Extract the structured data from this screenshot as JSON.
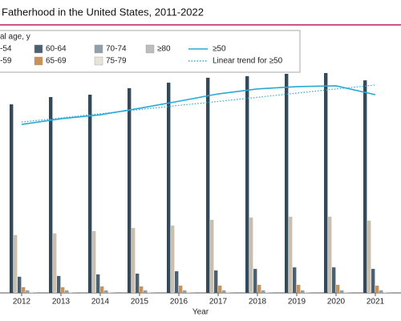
{
  "chart_data": {
    "type": "bar",
    "title": "Fatherhood in the United States, 2011-2022",
    "legend_title": "al age, y",
    "x_label": "Year",
    "categories": [
      "2012",
      "2013",
      "2014",
      "2015",
      "2016",
      "2017",
      "2018",
      "2019",
      "2020",
      "2021"
    ],
    "ylim": [
      0,
      100
    ],
    "series": [
      {
        "name": "-54",
        "color": "#34495a",
        "values": [
          72.3,
          75.1,
          76.0,
          78.5,
          80.6,
          82.5,
          83.1,
          84.0,
          84.3,
          81.5
        ]
      },
      {
        "name": "-59",
        "color": "#c9bfae",
        "values": [
          22.2,
          22.8,
          23.7,
          24.9,
          25.8,
          28.0,
          28.9,
          29.2,
          29.2,
          27.7
        ]
      },
      {
        "name": "60-64",
        "color": "#4b6172",
        "values": [
          6.2,
          6.5,
          7.1,
          7.4,
          8.3,
          8.6,
          9.2,
          9.8,
          9.8,
          9.2
        ]
      },
      {
        "name": "65-69",
        "color": "#c8925a",
        "values": [
          2.2,
          2.2,
          2.5,
          2.5,
          2.8,
          2.8,
          3.1,
          3.1,
          3.1,
          2.8
        ]
      },
      {
        "name": "70-74",
        "color": "#8fa0ab",
        "values": [
          1.0,
          1.0,
          1.0,
          1.0,
          1.0,
          1.0,
          1.0,
          1.0,
          1.0,
          1.0
        ]
      },
      {
        "name": "75-79",
        "color": "#e6e3da",
        "values": [
          0.5,
          0.5,
          0.5,
          0.5,
          0.5,
          0.5,
          0.5,
          0.5,
          0.5,
          0.5
        ]
      },
      {
        "name": "≥80",
        "color": "#bdbdbd",
        "values": [
          0.3,
          0.3,
          0.3,
          0.3,
          0.3,
          0.3,
          0.3,
          0.3,
          0.3,
          0.3
        ]
      },
      {
        "name": "≥50",
        "type": "line",
        "style": "solid",
        "color": "#29a9d6",
        "values": [
          64.6,
          66.8,
          68.3,
          70.8,
          73.5,
          76.3,
          78.2,
          79.1,
          79.4,
          76.0
        ]
      },
      {
        "name": "Linear trend for ≥50",
        "type": "line",
        "style": "dotted",
        "color": "#29a9d6",
        "values": [
          65.5,
          67.1,
          68.7,
          70.3,
          71.9,
          73.4,
          75.0,
          76.6,
          78.2,
          79.7
        ]
      }
    ]
  }
}
